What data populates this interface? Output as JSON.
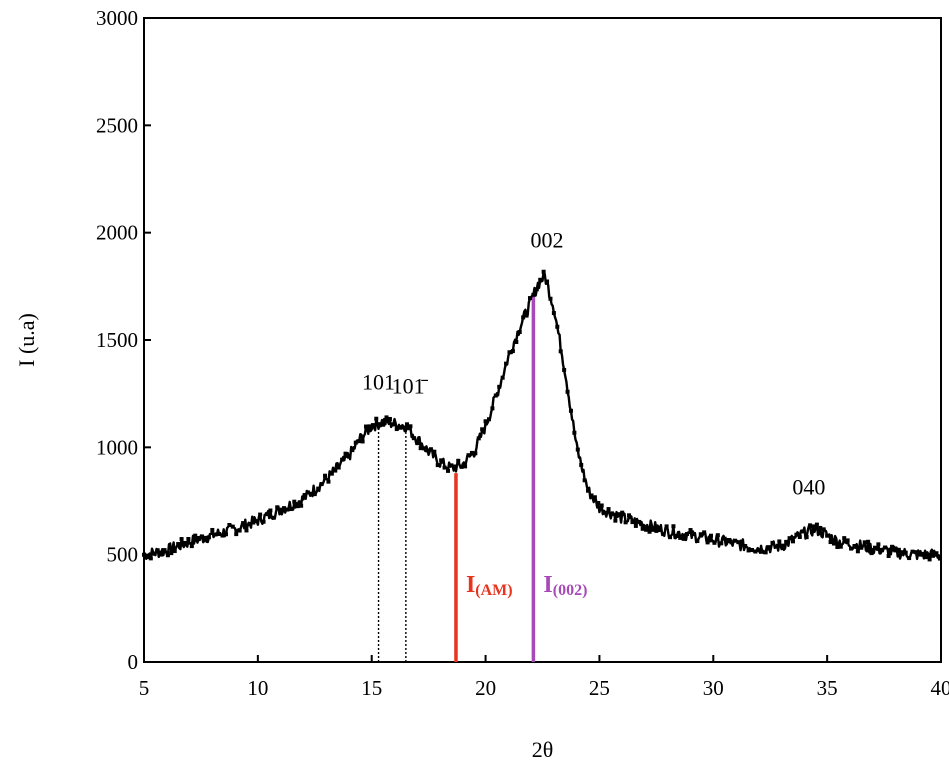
{
  "chart_data": {
    "type": "line",
    "title": "",
    "xlabel": "2θ",
    "ylabel": "I (u.a)",
    "xlim": [
      5,
      40
    ],
    "ylim": [
      0,
      3000
    ],
    "x_ticks": [
      5,
      10,
      15,
      20,
      25,
      30,
      35,
      40
    ],
    "y_ticks": [
      0,
      500,
      1000,
      1500,
      2000,
      2500,
      3000
    ],
    "grid": false,
    "legend": "none",
    "series": [
      {
        "color": "#000000",
        "x": [
          5,
          6,
          7,
          8,
          9,
          10,
          11,
          12,
          13,
          14,
          14.5,
          15,
          15.5,
          16,
          16.5,
          17,
          17.5,
          18,
          18.5,
          19,
          19.5,
          20,
          20.5,
          21,
          21.5,
          22,
          22.3,
          22.6,
          23,
          23.5,
          24,
          24.5,
          25,
          26,
          27,
          28,
          29,
          30,
          31,
          32,
          33,
          33.5,
          34,
          34.5,
          35,
          35.5,
          36,
          37,
          38,
          39,
          40
        ],
        "y": [
          500,
          520,
          560,
          590,
          620,
          660,
          710,
          760,
          850,
          960,
          1040,
          1100,
          1120,
          1110,
          1100,
          1040,
          980,
          930,
          900,
          920,
          980,
          1100,
          1250,
          1420,
          1560,
          1680,
          1760,
          1800,
          1650,
          1350,
          1000,
          800,
          720,
          670,
          640,
          610,
          590,
          570,
          550,
          530,
          540,
          570,
          600,
          620,
          590,
          560,
          550,
          530,
          510,
          500,
          500
        ]
      }
    ],
    "annotations": [
      {
        "text": "101",
        "x": 15.3,
        "y": 1270
      },
      {
        "text": "101̄",
        "x": 16.6,
        "y": 1250
      },
      {
        "text": "002",
        "x": 22.7,
        "y": 1930
      },
      {
        "text": "040",
        "x": 34.2,
        "y": 780
      }
    ],
    "vlines": [
      {
        "x": 15.3,
        "y": 1115,
        "style": "dotted",
        "color": "#000000"
      },
      {
        "x": 16.5,
        "y": 1100,
        "style": "dotted",
        "color": "#000000"
      },
      {
        "x": 18.7,
        "y": 880,
        "style": "solid",
        "color": "#e8331f",
        "label_main": "I",
        "label_sub": "(AM)"
      },
      {
        "x": 22.1,
        "y": 1710,
        "style": "solid",
        "color": "#a64ab8",
        "label_main": "I",
        "label_sub": "(002)"
      }
    ]
  }
}
